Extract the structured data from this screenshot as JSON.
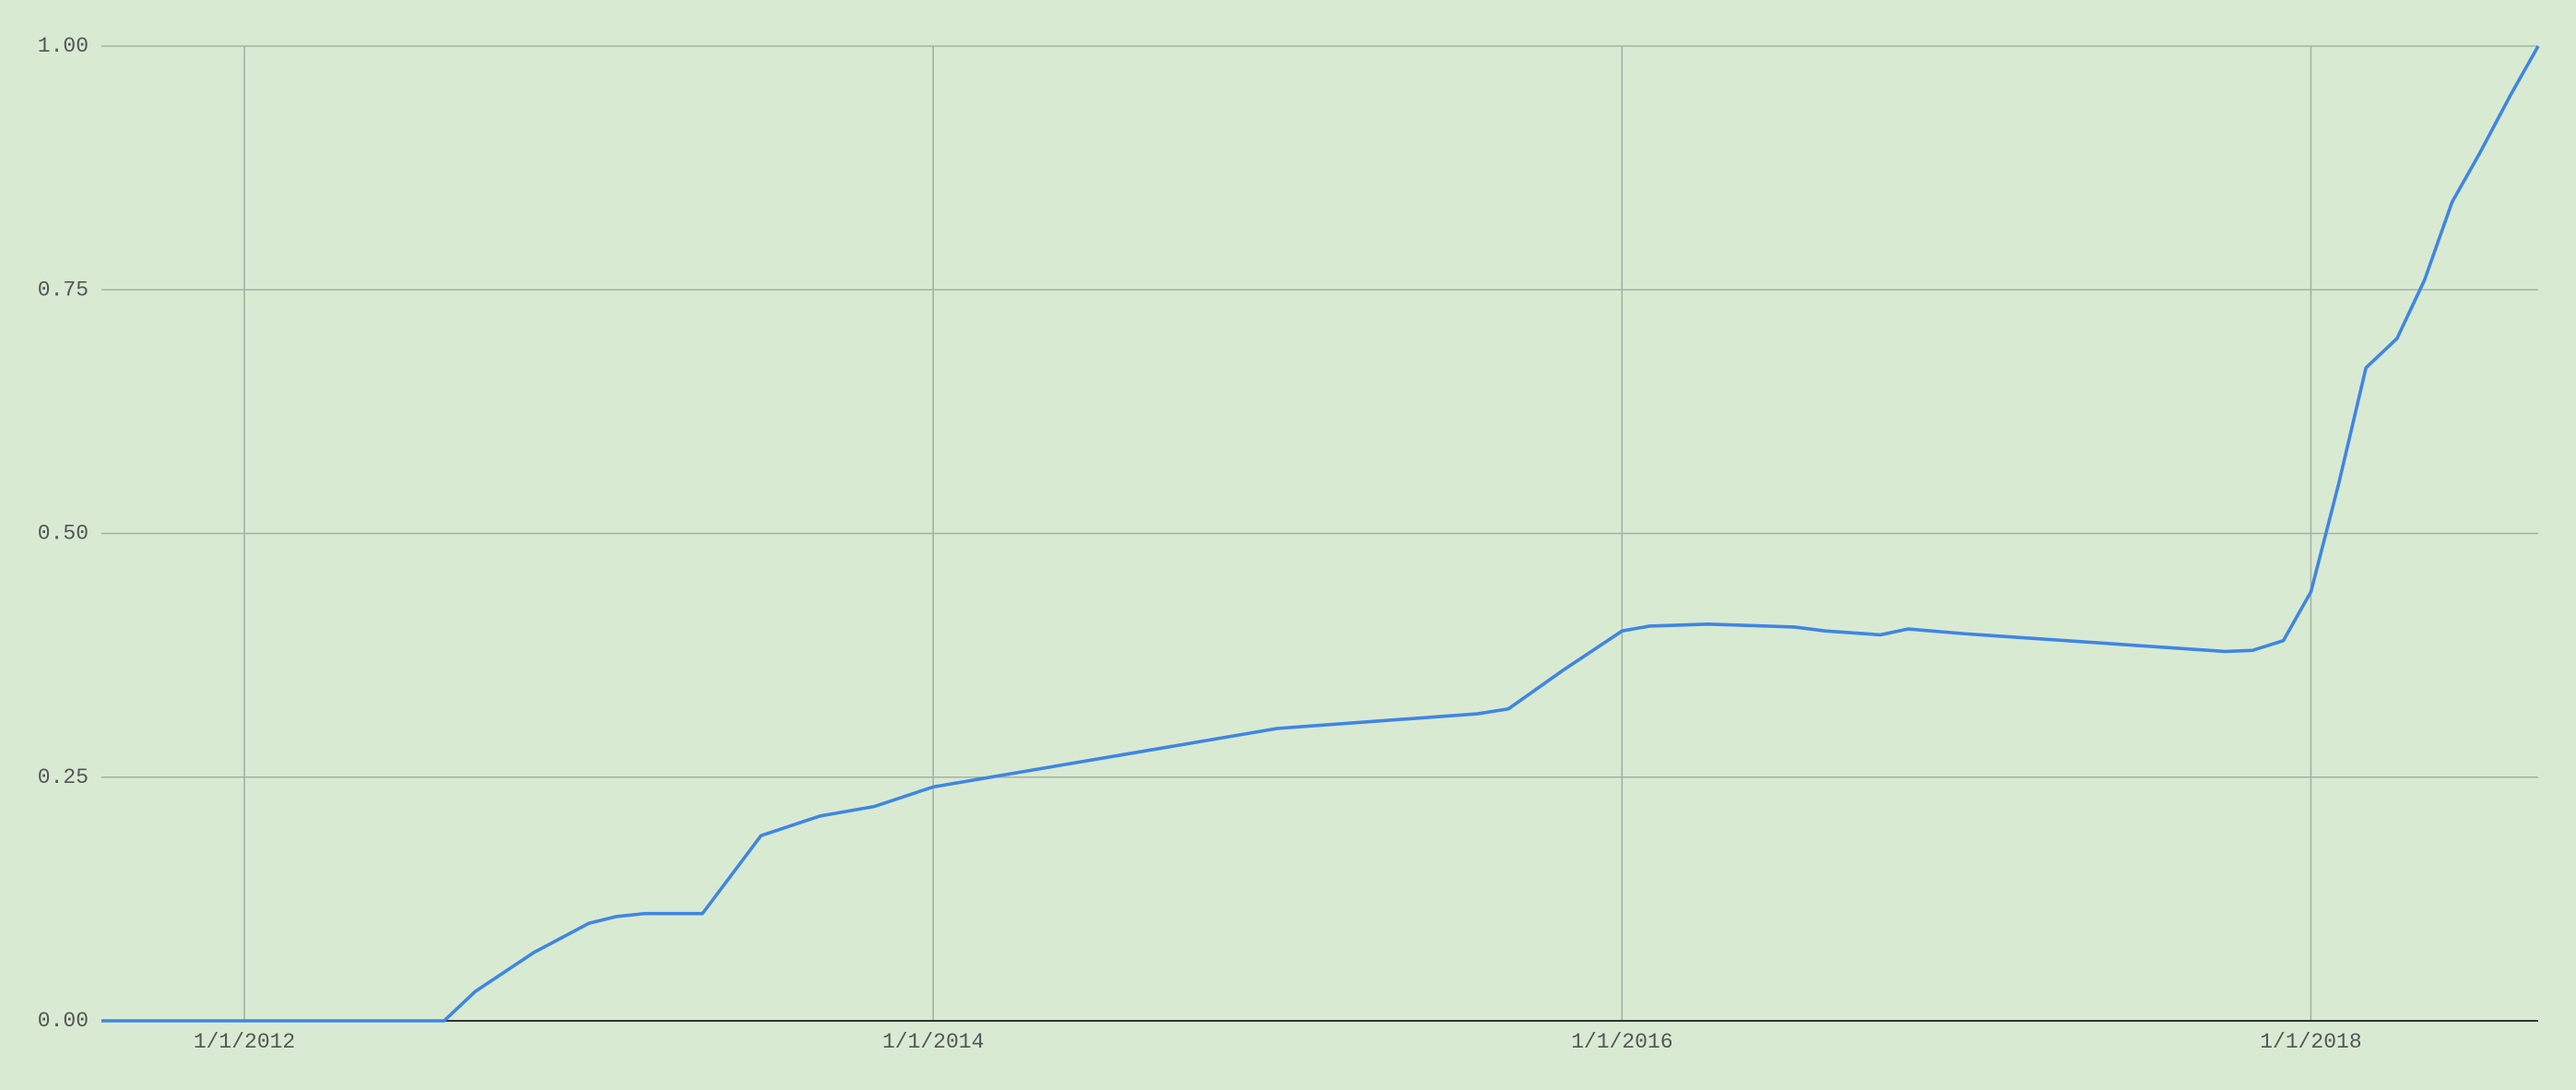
{
  "chart_data": {
    "type": "line",
    "x": [
      2011.585,
      2012.58,
      2012.67,
      2012.84,
      2013.0,
      2013.08,
      2013.16,
      2013.33,
      2013.5,
      2013.67,
      2013.83,
      2014.0,
      2015.0,
      2015.58,
      2015.67,
      2015.83,
      2016.0,
      2016.08,
      2016.25,
      2016.5,
      2016.59,
      2016.75,
      2016.83,
      2017.0,
      2017.75,
      2017.83,
      2017.92,
      2018.0,
      2018.08,
      2018.16,
      2018.25,
      2018.33,
      2018.41,
      2018.49,
      2018.58,
      2018.66
    ],
    "series": [
      {
        "color": "#3f86e3",
        "values": [
          0,
          0,
          0.03,
          0.07,
          0.1,
          0.107,
          0.11,
          0.11,
          0.19,
          0.21,
          0.22,
          0.24,
          0.3,
          0.315,
          0.32,
          0.36,
          0.4,
          0.405,
          0.407,
          0.404,
          0.4,
          0.396,
          0.402,
          0.397,
          0.379,
          0.38,
          0.39,
          0.44,
          0.55,
          0.67,
          0.7,
          0.76,
          0.84,
          0.89,
          0.95,
          1.0
        ]
      }
    ],
    "xlim": [
      2011.585,
      2018.66
    ],
    "xticks": [
      {
        "value": 2012,
        "label": "1/1/2012"
      },
      {
        "value": 2014,
        "label": "1/1/2014"
      },
      {
        "value": 2016,
        "label": "1/1/2016"
      },
      {
        "value": 2018,
        "label": "1/1/2018"
      }
    ],
    "ylim": [
      0,
      1
    ],
    "yticks": [
      {
        "value": 0,
        "label": "0.00"
      },
      {
        "value": 0.25,
        "label": "0.25"
      },
      {
        "value": 0.5,
        "label": "0.50"
      },
      {
        "value": 0.75,
        "label": "0.75"
      },
      {
        "value": 1,
        "label": "1.00"
      }
    ],
    "grid": true
  }
}
